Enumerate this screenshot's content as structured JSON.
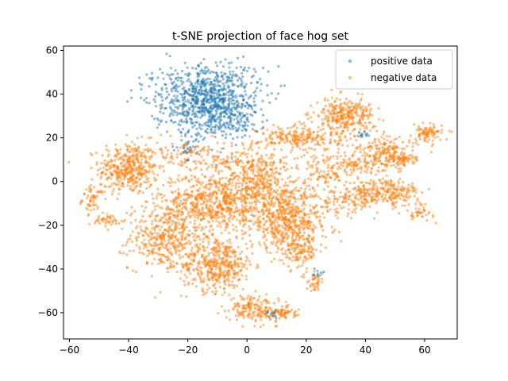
{
  "chart_data": {
    "type": "scatter",
    "title": "t-SNE projection of face hog set",
    "xlabel": "",
    "ylabel": "",
    "xlim": [
      -62,
      71
    ],
    "ylim": [
      -72,
      62
    ],
    "x_ticks": [
      -60,
      -40,
      -20,
      0,
      20,
      40,
      60
    ],
    "y_ticks": [
      -60,
      -40,
      -20,
      0,
      20,
      40,
      60
    ],
    "x_tick_labels": [
      "−60",
      "−40",
      "−20",
      "0",
      "20",
      "40",
      "60"
    ],
    "y_tick_labels": [
      "−60",
      "−40",
      "−20",
      "0",
      "20",
      "40",
      "60"
    ],
    "grid": false,
    "legend_position": "upper-right",
    "series": [
      {
        "name": "positive data",
        "color": "#1f77b4",
        "clusters": [
          {
            "cx": -14,
            "cy": 38,
            "sx": 9,
            "sy": 8,
            "n": 850
          },
          {
            "cx": -6,
            "cy": 30,
            "sx": 4,
            "sy": 6,
            "n": 120
          },
          {
            "cx": 39,
            "cy": 22,
            "sx": 1.5,
            "sy": 1,
            "n": 12
          },
          {
            "cx": 24,
            "cy": -42,
            "sx": 1.2,
            "sy": 1.2,
            "n": 10
          },
          {
            "cx": 8,
            "cy": -61,
            "sx": 2,
            "sy": 1,
            "n": 10
          },
          {
            "cx": -19,
            "cy": 16,
            "sx": 3,
            "sy": 4,
            "n": 25
          }
        ]
      },
      {
        "name": "negative data",
        "color": "#ff7f0e",
        "clusters": [
          {
            "cx": -40,
            "cy": 6,
            "sx": 5,
            "sy": 6,
            "n": 420
          },
          {
            "cx": -52,
            "cy": -8,
            "sx": 1.8,
            "sy": 3,
            "n": 60
          },
          {
            "cx": -47,
            "cy": -18,
            "sx": 3,
            "sy": 1.5,
            "n": 40
          },
          {
            "cx": -28,
            "cy": -26,
            "sx": 6,
            "sy": 7,
            "n": 380
          },
          {
            "cx": -10,
            "cy": -38,
            "sx": 6,
            "sy": 6,
            "n": 450
          },
          {
            "cx": -12,
            "cy": -10,
            "sx": 9,
            "sy": 7,
            "n": 650
          },
          {
            "cx": 4,
            "cy": -2,
            "sx": 8,
            "sy": 7,
            "n": 400
          },
          {
            "cx": 14,
            "cy": -18,
            "sx": 7,
            "sy": 7,
            "n": 550
          },
          {
            "cx": 18,
            "cy": -32,
            "sx": 3,
            "sy": 4,
            "n": 120
          },
          {
            "cx": 23,
            "cy": -46,
            "sx": 1.5,
            "sy": 2,
            "n": 40
          },
          {
            "cx": 33,
            "cy": 30,
            "sx": 5,
            "sy": 4,
            "n": 320
          },
          {
            "cx": 18,
            "cy": 20,
            "sx": 7,
            "sy": 3,
            "n": 220
          },
          {
            "cx": 47,
            "cy": 12,
            "sx": 5,
            "sy": 4,
            "n": 240
          },
          {
            "cx": 61,
            "cy": 22,
            "sx": 2.5,
            "sy": 2,
            "n": 90
          },
          {
            "cx": 47,
            "cy": -5,
            "sx": 6,
            "sy": 3,
            "n": 240
          },
          {
            "cx": 58,
            "cy": -14,
            "sx": 2.5,
            "sy": 2,
            "n": 40
          },
          {
            "cx": 35,
            "cy": -8,
            "sx": 5,
            "sy": 3,
            "n": 100
          },
          {
            "cx": 2,
            "cy": -58,
            "sx": 4,
            "sy": 3,
            "n": 160
          },
          {
            "cx": 11,
            "cy": -60,
            "sx": 3,
            "sy": 1.5,
            "n": 80
          },
          {
            "cx": 27,
            "cy": 5,
            "sx": 5,
            "sy": 5,
            "n": 120
          },
          {
            "cx": -20,
            "cy": 12,
            "sx": 5,
            "sy": 4,
            "n": 100
          },
          {
            "cx": 0,
            "cy": 10,
            "sx": 8,
            "sy": 5,
            "n": 140
          },
          {
            "cx": 52,
            "cy": 10,
            "sx": 2,
            "sy": 1,
            "n": 40
          },
          {
            "cx": 36,
            "cy": 8,
            "sx": 3,
            "sy": 2,
            "n": 50
          }
        ]
      }
    ]
  }
}
